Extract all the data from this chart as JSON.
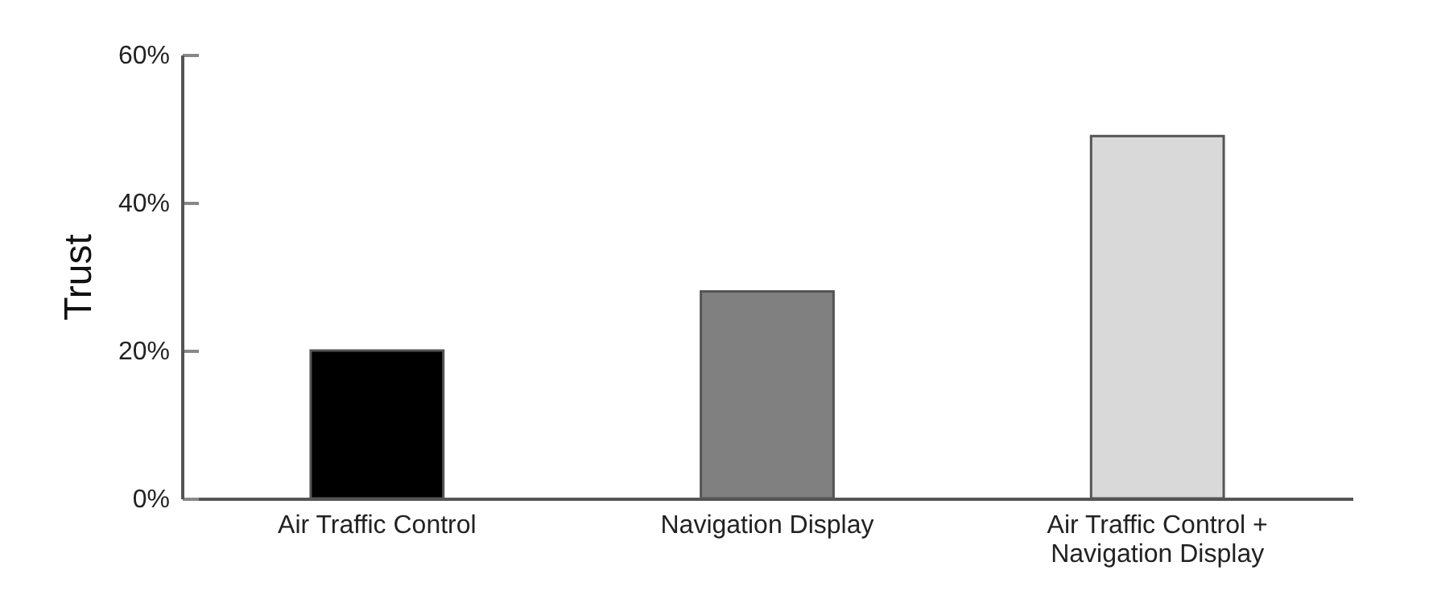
{
  "chart_data": {
    "type": "bar",
    "ylabel": "Trust",
    "categories": [
      "Air Traffic Control",
      "Navigation Display",
      "Air Traffic Control + Navigation Display"
    ],
    "values": [
      20,
      28,
      49
    ],
    "colors": [
      "#000000",
      "#808080",
      "#d9d9d9"
    ],
    "ylim": [
      0,
      60
    ],
    "yticks": [
      {
        "value": 0,
        "label": "0%"
      },
      {
        "value": 20,
        "label": "20%"
      },
      {
        "value": 40,
        "label": "40%"
      },
      {
        "value": 60,
        "label": "60%"
      }
    ],
    "grid": false
  }
}
